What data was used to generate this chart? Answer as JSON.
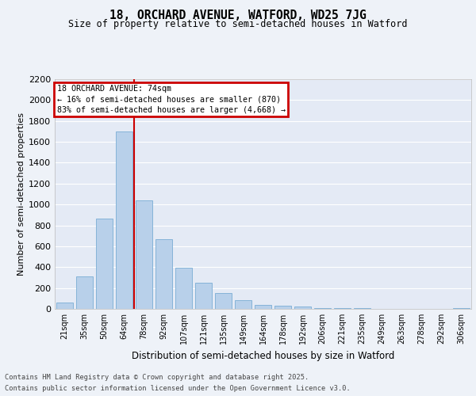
{
  "title1": "18, ORCHARD AVENUE, WATFORD, WD25 7JG",
  "title2": "Size of property relative to semi-detached houses in Watford",
  "xlabel": "Distribution of semi-detached houses by size in Watford",
  "ylabel": "Number of semi-detached properties",
  "categories": [
    "21sqm",
    "35sqm",
    "50sqm",
    "64sqm",
    "78sqm",
    "92sqm",
    "107sqm",
    "121sqm",
    "135sqm",
    "149sqm",
    "164sqm",
    "178sqm",
    "192sqm",
    "206sqm",
    "221sqm",
    "235sqm",
    "249sqm",
    "263sqm",
    "278sqm",
    "292sqm",
    "306sqm"
  ],
  "values": [
    60,
    310,
    865,
    1700,
    1040,
    665,
    395,
    250,
    150,
    80,
    40,
    30,
    20,
    10,
    5,
    5,
    2,
    2,
    0,
    0,
    5
  ],
  "bar_color": "#b8d0ea",
  "bar_edge_color": "#7aadd4",
  "annotation_title": "18 ORCHARD AVENUE: 74sqm",
  "annotation_line1": "← 16% of semi-detached houses are smaller (870)",
  "annotation_line2": "83% of semi-detached houses are larger (4,668) →",
  "vline_color": "#cc0000",
  "annotation_box_color": "#cc0000",
  "ylim": [
    0,
    2200
  ],
  "yticks": [
    0,
    200,
    400,
    600,
    800,
    1000,
    1200,
    1400,
    1600,
    1800,
    2000,
    2200
  ],
  "footnote1": "Contains HM Land Registry data © Crown copyright and database right 2025.",
  "footnote2": "Contains public sector information licensed under the Open Government Licence v3.0.",
  "bg_color": "#eef2f8",
  "plot_bg_color": "#e4eaf5"
}
